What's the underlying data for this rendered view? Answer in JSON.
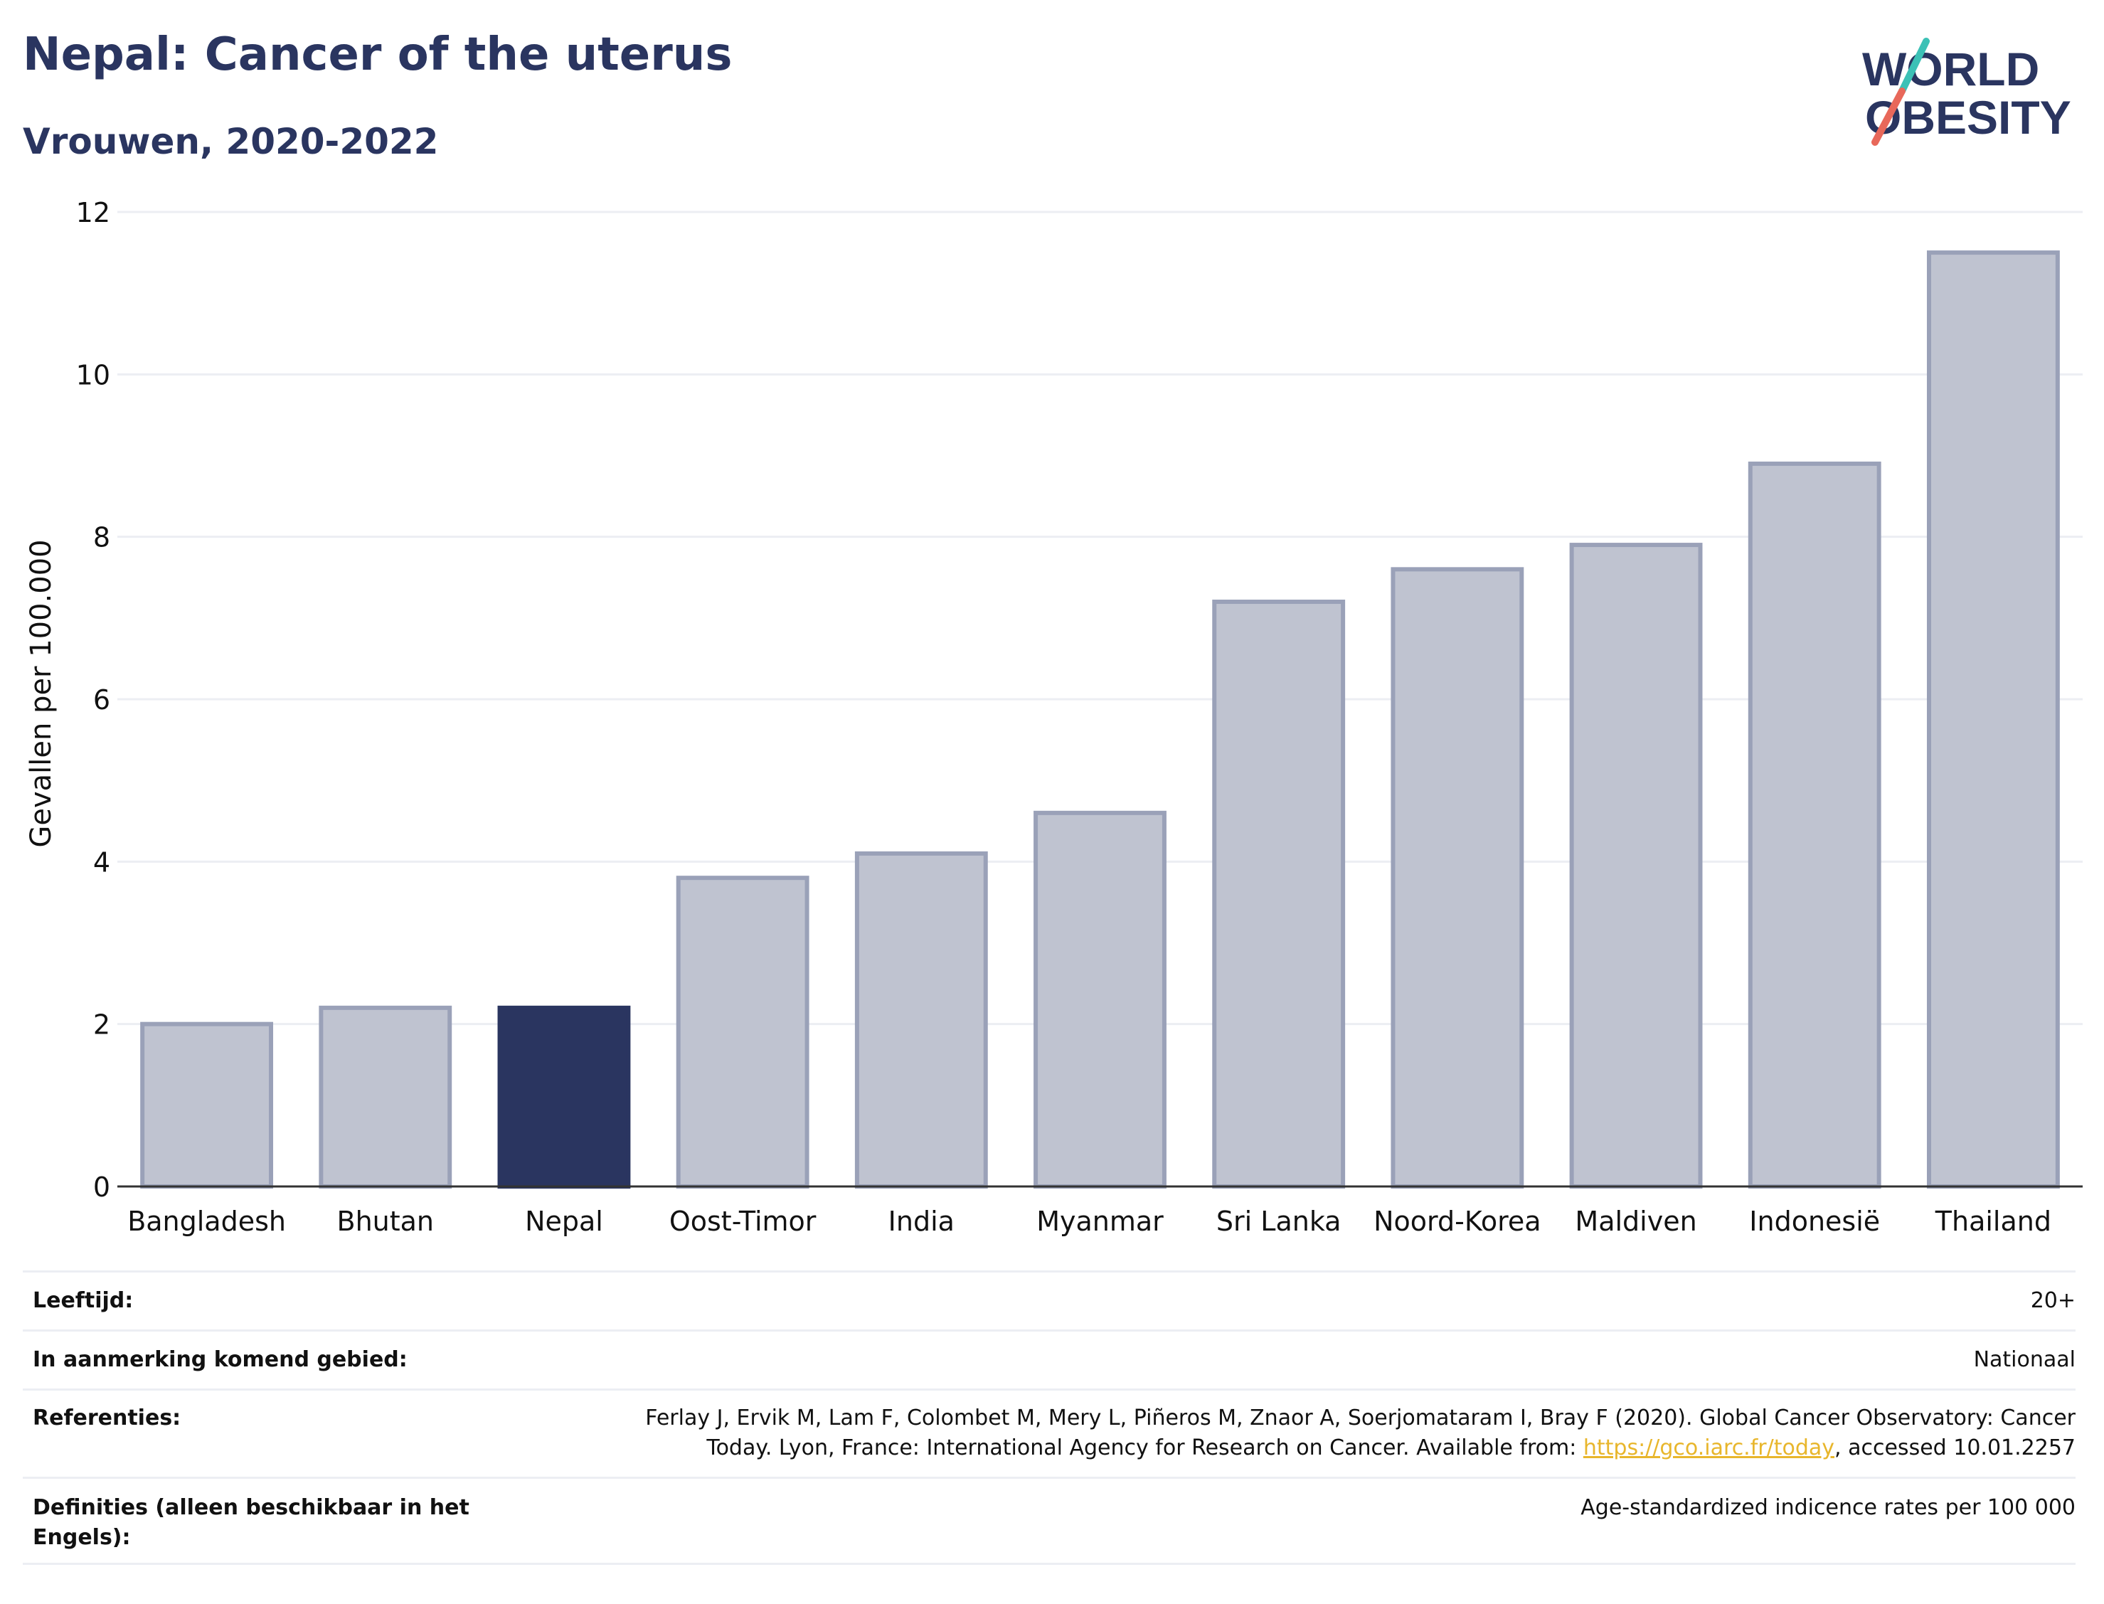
{
  "header": {
    "title": "Nepal: Cancer of the uterus",
    "subtitle": "Vrouwen, 2020-2022"
  },
  "logo": {
    "line1": "WORLD",
    "line2": "OBESITY",
    "colors": {
      "text": "#2a3560",
      "slash_top": "#3cc1b6",
      "slash_bottom": "#e8685a"
    }
  },
  "chart_data": {
    "type": "bar",
    "ylabel": "Gevallen per 100.000",
    "xlabel": "",
    "ylim": [
      0,
      12
    ],
    "yticks": [
      0,
      2,
      4,
      6,
      8,
      10,
      12
    ],
    "categories": [
      "Bangladesh",
      "Bhutan",
      "Nepal",
      "Oost-Timor",
      "India",
      "Myanmar",
      "Sri Lanka",
      "Noord-Korea",
      "Maldiven",
      "Indonesië",
      "Thailand"
    ],
    "values": [
      2.0,
      2.2,
      2.2,
      3.8,
      4.1,
      4.6,
      7.2,
      7.6,
      7.9,
      8.9,
      11.5
    ],
    "highlight": "Nepal",
    "grid": true,
    "legend": "none",
    "colors": {
      "bar": "#bfc3d0",
      "bar_border": "#9aa1b8",
      "highlight": "#2a3560",
      "grid": "#eceef3",
      "axis": "#333333"
    }
  },
  "info": {
    "rows": [
      {
        "key": "Leeftijd:",
        "value": "20+"
      },
      {
        "key": "In aanmerking komend gebied:",
        "value": "Nationaal"
      },
      {
        "key": "Referenties:",
        "value_line1": "Ferlay J, Ervik M, Lam F, Colombet M, Mery L, Piñeros M, Znaor A, Soerjomataram I, Bray F (2020). Global Cancer Observatory: Cancer",
        "value_line2_pre": "Today. Lyon, France: International Agency for Research on Cancer. Available from: ",
        "link": "https://gco.iarc.fr/today",
        "value_line2_post": ", accessed 10.01.2257"
      },
      {
        "key": "Definities (alleen beschikbaar in het Engels):",
        "value": "Age-standardized indicence rates per 100 000"
      }
    ]
  }
}
